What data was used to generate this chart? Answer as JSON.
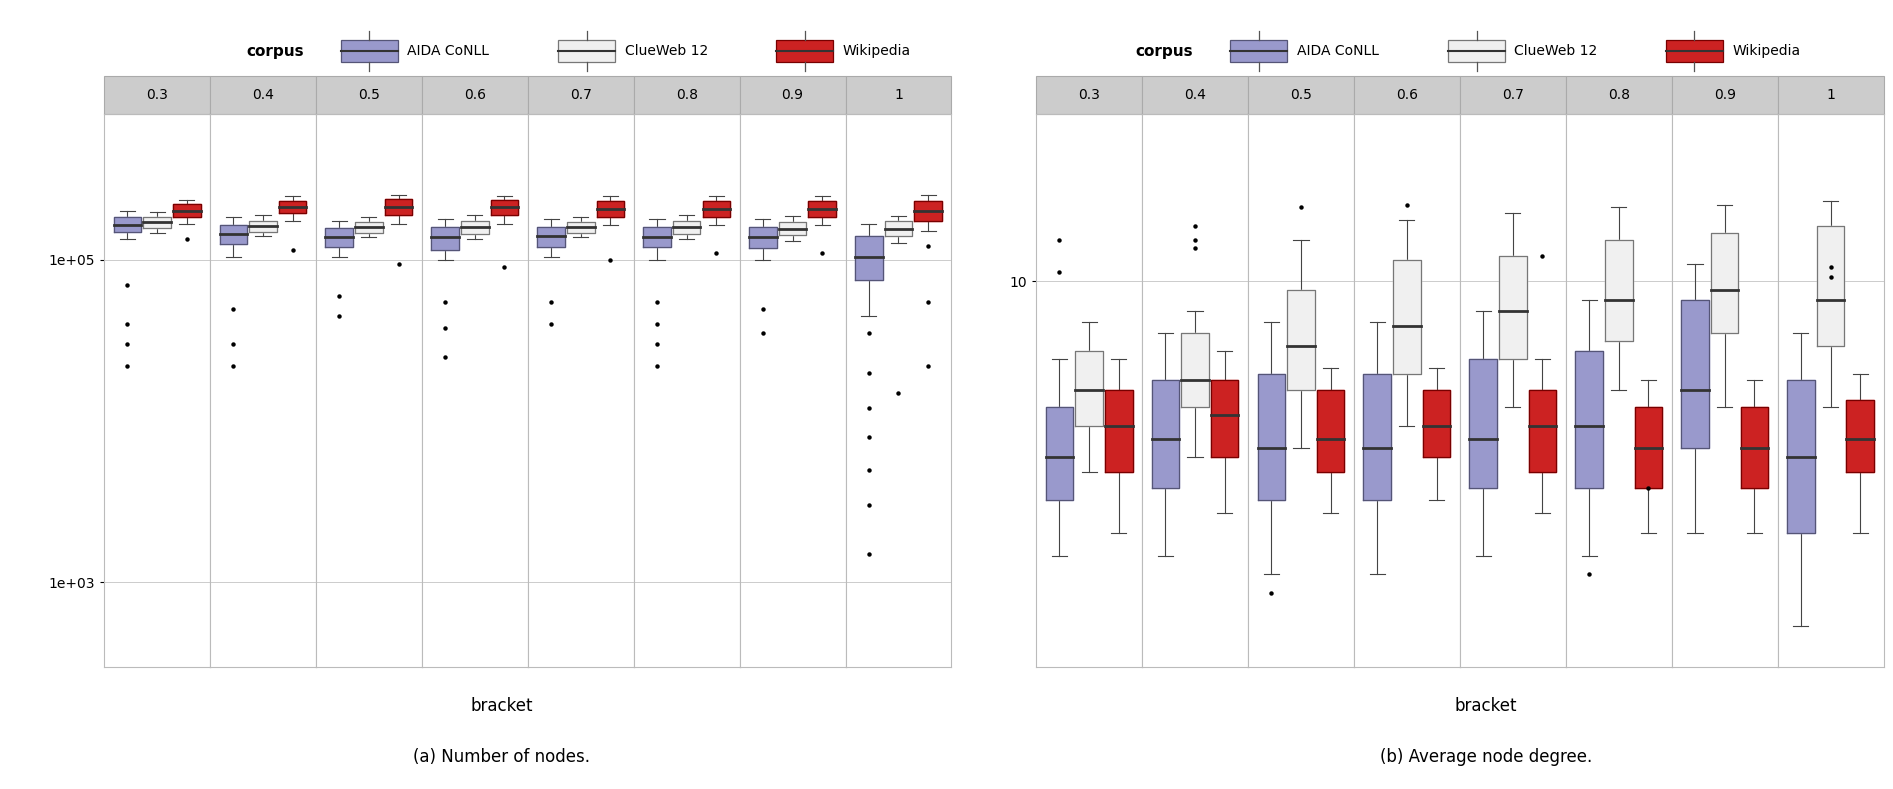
{
  "bracket_labels": [
    "0.3",
    "0.4",
    "0.5",
    "0.6",
    "0.7",
    "0.8",
    "0.9",
    "1"
  ],
  "corpus_names": [
    "AIDA CoNLL",
    "ClueWeb 12",
    "Wikipedia"
  ],
  "colors_fill": [
    "#9999cc",
    "#f0f0f0",
    "#cc2222"
  ],
  "colors_edge": [
    "#555577",
    "#777777",
    "#770000"
  ],
  "colors_median": [
    "#444444",
    "#444444",
    "#444444"
  ],
  "title_a": "(a) Number of nodes.",
  "title_b": "(b) Average node degree.",
  "xlabel": "bracket",
  "nodes": {
    "AIDA": {
      "0.3": {
        "q1": 150000.0,
        "med": 165000.0,
        "q3": 185000.0,
        "wlo": 135000.0,
        "whi": 200000.0,
        "fly": [
          70000.0,
          40000.0,
          30000.0,
          22000.0
        ]
      },
      "0.4": {
        "q1": 125000.0,
        "med": 145000.0,
        "q3": 165000.0,
        "wlo": 105000.0,
        "whi": 185000.0,
        "fly": [
          50000.0,
          30000.0,
          22000.0
        ]
      },
      "0.5": {
        "q1": 120000.0,
        "med": 138000.0,
        "q3": 158000.0,
        "wlo": 105000.0,
        "whi": 175000.0,
        "fly": [
          60000.0,
          45000.0
        ]
      },
      "0.6": {
        "q1": 115000.0,
        "med": 138000.0,
        "q3": 160000.0,
        "wlo": 100000.0,
        "whi": 180000.0,
        "fly": [
          55000.0,
          38000.0,
          25000.0
        ]
      },
      "0.7": {
        "q1": 120000.0,
        "med": 140000.0,
        "q3": 160000.0,
        "wlo": 105000.0,
        "whi": 180000.0,
        "fly": [
          55000.0,
          40000.0
        ]
      },
      "0.8": {
        "q1": 120000.0,
        "med": 138000.0,
        "q3": 160000.0,
        "wlo": 100000.0,
        "whi": 180000.0,
        "fly": [
          55000.0,
          40000.0,
          30000.0,
          22000.0
        ]
      },
      "0.9": {
        "q1": 118000.0,
        "med": 138000.0,
        "q3": 160000.0,
        "wlo": 100000.0,
        "whi": 180000.0,
        "fly": [
          50000.0,
          35000.0
        ]
      },
      "1": {
        "q1": 75000.0,
        "med": 105000.0,
        "q3": 140000.0,
        "wlo": 45000.0,
        "whi": 168000.0,
        "fly": [
          35000.0,
          20000.0,
          12000.0,
          8000.0,
          5000.0,
          3000.0,
          1500.0
        ]
      }
    },
    "ClueWeb": {
      "0.3": {
        "q1": 158000.0,
        "med": 172000.0,
        "q3": 185000.0,
        "wlo": 148000.0,
        "whi": 198000.0,
        "fly": []
      },
      "0.4": {
        "q1": 150000.0,
        "med": 162000.0,
        "q3": 175000.0,
        "wlo": 140000.0,
        "whi": 190000.0,
        "fly": []
      },
      "0.5": {
        "q1": 148000.0,
        "med": 160000.0,
        "q3": 172000.0,
        "wlo": 138000.0,
        "whi": 185000.0,
        "fly": []
      },
      "0.6": {
        "q1": 145000.0,
        "med": 160000.0,
        "q3": 175000.0,
        "wlo": 135000.0,
        "whi": 190000.0,
        "fly": []
      },
      "0.7": {
        "q1": 148000.0,
        "med": 160000.0,
        "q3": 172000.0,
        "wlo": 138000.0,
        "whi": 185000.0,
        "fly": []
      },
      "0.8": {
        "q1": 145000.0,
        "med": 160000.0,
        "q3": 175000.0,
        "wlo": 135000.0,
        "whi": 190000.0,
        "fly": []
      },
      "0.9": {
        "q1": 142000.0,
        "med": 155000.0,
        "q3": 172000.0,
        "wlo": 132000.0,
        "whi": 188000.0,
        "fly": []
      },
      "1": {
        "q1": 140000.0,
        "med": 155000.0,
        "q3": 175000.0,
        "wlo": 128000.0,
        "whi": 188000.0,
        "fly": [
          15000.0
        ]
      }
    },
    "Wikipedia": {
      "0.3": {
        "q1": 185000.0,
        "med": 202000.0,
        "q3": 222000.0,
        "wlo": 168000.0,
        "whi": 235000.0,
        "fly": [
          135000.0
        ]
      },
      "0.4": {
        "q1": 195000.0,
        "med": 212000.0,
        "q3": 232000.0,
        "wlo": 175000.0,
        "whi": 248000.0,
        "fly": [
          115000.0
        ]
      },
      "0.5": {
        "q1": 190000.0,
        "med": 212000.0,
        "q3": 238000.0,
        "wlo": 168000.0,
        "whi": 252000.0,
        "fly": [
          95000.0
        ]
      },
      "0.6": {
        "q1": 190000.0,
        "med": 212000.0,
        "q3": 235000.0,
        "wlo": 168000.0,
        "whi": 250000.0,
        "fly": [
          90000.0
        ]
      },
      "0.7": {
        "q1": 185000.0,
        "med": 208000.0,
        "q3": 232000.0,
        "wlo": 165000.0,
        "whi": 248000.0,
        "fly": [
          100000.0
        ]
      },
      "0.8": {
        "q1": 185000.0,
        "med": 208000.0,
        "q3": 232000.0,
        "wlo": 165000.0,
        "whi": 248000.0,
        "fly": [
          110000.0
        ]
      },
      "0.9": {
        "q1": 185000.0,
        "med": 208000.0,
        "q3": 232000.0,
        "wlo": 165000.0,
        "whi": 248000.0,
        "fly": [
          110000.0
        ]
      },
      "1": {
        "q1": 175000.0,
        "med": 202000.0,
        "q3": 232000.0,
        "wlo": 152000.0,
        "whi": 252000.0,
        "fly": [
          122000.0,
          55000.0,
          22000.0
        ]
      }
    }
  },
  "degree": {
    "AIDA": {
      "0.3": {
        "q1": 3.0,
        "med": 3.8,
        "q3": 5.0,
        "wlo": 2.2,
        "whi": 6.5,
        "fly": [
          12.5,
          10.5
        ]
      },
      "0.4": {
        "q1": 3.2,
        "med": 4.2,
        "q3": 5.8,
        "wlo": 2.2,
        "whi": 7.5,
        "fly": []
      },
      "0.5": {
        "q1": 3.0,
        "med": 4.0,
        "q3": 6.0,
        "wlo": 2.0,
        "whi": 8.0,
        "fly": [
          1.8
        ]
      },
      "0.6": {
        "q1": 3.0,
        "med": 4.0,
        "q3": 6.0,
        "wlo": 2.0,
        "whi": 8.0,
        "fly": []
      },
      "0.7": {
        "q1": 3.2,
        "med": 4.2,
        "q3": 6.5,
        "wlo": 2.2,
        "whi": 8.5,
        "fly": []
      },
      "0.8": {
        "q1": 3.2,
        "med": 4.5,
        "q3": 6.8,
        "wlo": 2.2,
        "whi": 9.0,
        "fly": [
          2.0
        ]
      },
      "0.9": {
        "q1": 4.0,
        "med": 5.5,
        "q3": 9.0,
        "wlo": 2.5,
        "whi": 11.0,
        "fly": []
      },
      "1": {
        "q1": 2.5,
        "med": 3.8,
        "q3": 5.8,
        "wlo": 1.5,
        "whi": 7.5,
        "fly": []
      }
    },
    "ClueWeb": {
      "0.3": {
        "q1": 4.5,
        "med": 5.5,
        "q3": 6.8,
        "wlo": 3.5,
        "whi": 8.0,
        "fly": []
      },
      "0.4": {
        "q1": 5.0,
        "med": 5.8,
        "q3": 7.5,
        "wlo": 3.8,
        "whi": 8.5,
        "fly": [
          13.5,
          12.5,
          12.0
        ]
      },
      "0.5": {
        "q1": 5.5,
        "med": 7.0,
        "q3": 9.5,
        "wlo": 4.0,
        "whi": 12.5,
        "fly": [
          15.0
        ]
      },
      "0.6": {
        "q1": 6.0,
        "med": 7.8,
        "q3": 11.2,
        "wlo": 4.5,
        "whi": 14.0,
        "fly": [
          15.2
        ]
      },
      "0.7": {
        "q1": 6.5,
        "med": 8.5,
        "q3": 11.5,
        "wlo": 5.0,
        "whi": 14.5,
        "fly": []
      },
      "0.8": {
        "q1": 7.2,
        "med": 9.0,
        "q3": 12.5,
        "wlo": 5.5,
        "whi": 15.0,
        "fly": []
      },
      "0.9": {
        "q1": 7.5,
        "med": 9.5,
        "q3": 13.0,
        "wlo": 5.0,
        "whi": 15.2,
        "fly": []
      },
      "1": {
        "q1": 7.0,
        "med": 9.0,
        "q3": 13.5,
        "wlo": 5.0,
        "whi": 15.5,
        "fly": [
          10.8,
          10.2
        ]
      }
    },
    "Wikipedia": {
      "0.3": {
        "q1": 3.5,
        "med": 4.5,
        "q3": 5.5,
        "wlo": 2.5,
        "whi": 6.5,
        "fly": []
      },
      "0.4": {
        "q1": 3.8,
        "med": 4.8,
        "q3": 5.8,
        "wlo": 2.8,
        "whi": 6.8,
        "fly": []
      },
      "0.5": {
        "q1": 3.5,
        "med": 4.2,
        "q3": 5.5,
        "wlo": 2.8,
        "whi": 6.2,
        "fly": []
      },
      "0.6": {
        "q1": 3.8,
        "med": 4.5,
        "q3": 5.5,
        "wlo": 3.0,
        "whi": 6.2,
        "fly": []
      },
      "0.7": {
        "q1": 3.5,
        "med": 4.5,
        "q3": 5.5,
        "wlo": 2.8,
        "whi": 6.5,
        "fly": [
          11.5
        ]
      },
      "0.8": {
        "q1": 3.2,
        "med": 4.0,
        "q3": 5.0,
        "wlo": 2.5,
        "whi": 5.8,
        "fly": [
          3.2
        ]
      },
      "0.9": {
        "q1": 3.2,
        "med": 4.0,
        "q3": 5.0,
        "wlo": 2.5,
        "whi": 5.8,
        "fly": []
      },
      "1": {
        "q1": 3.5,
        "med": 4.2,
        "q3": 5.2,
        "wlo": 2.5,
        "whi": 6.0,
        "fly": []
      }
    }
  }
}
